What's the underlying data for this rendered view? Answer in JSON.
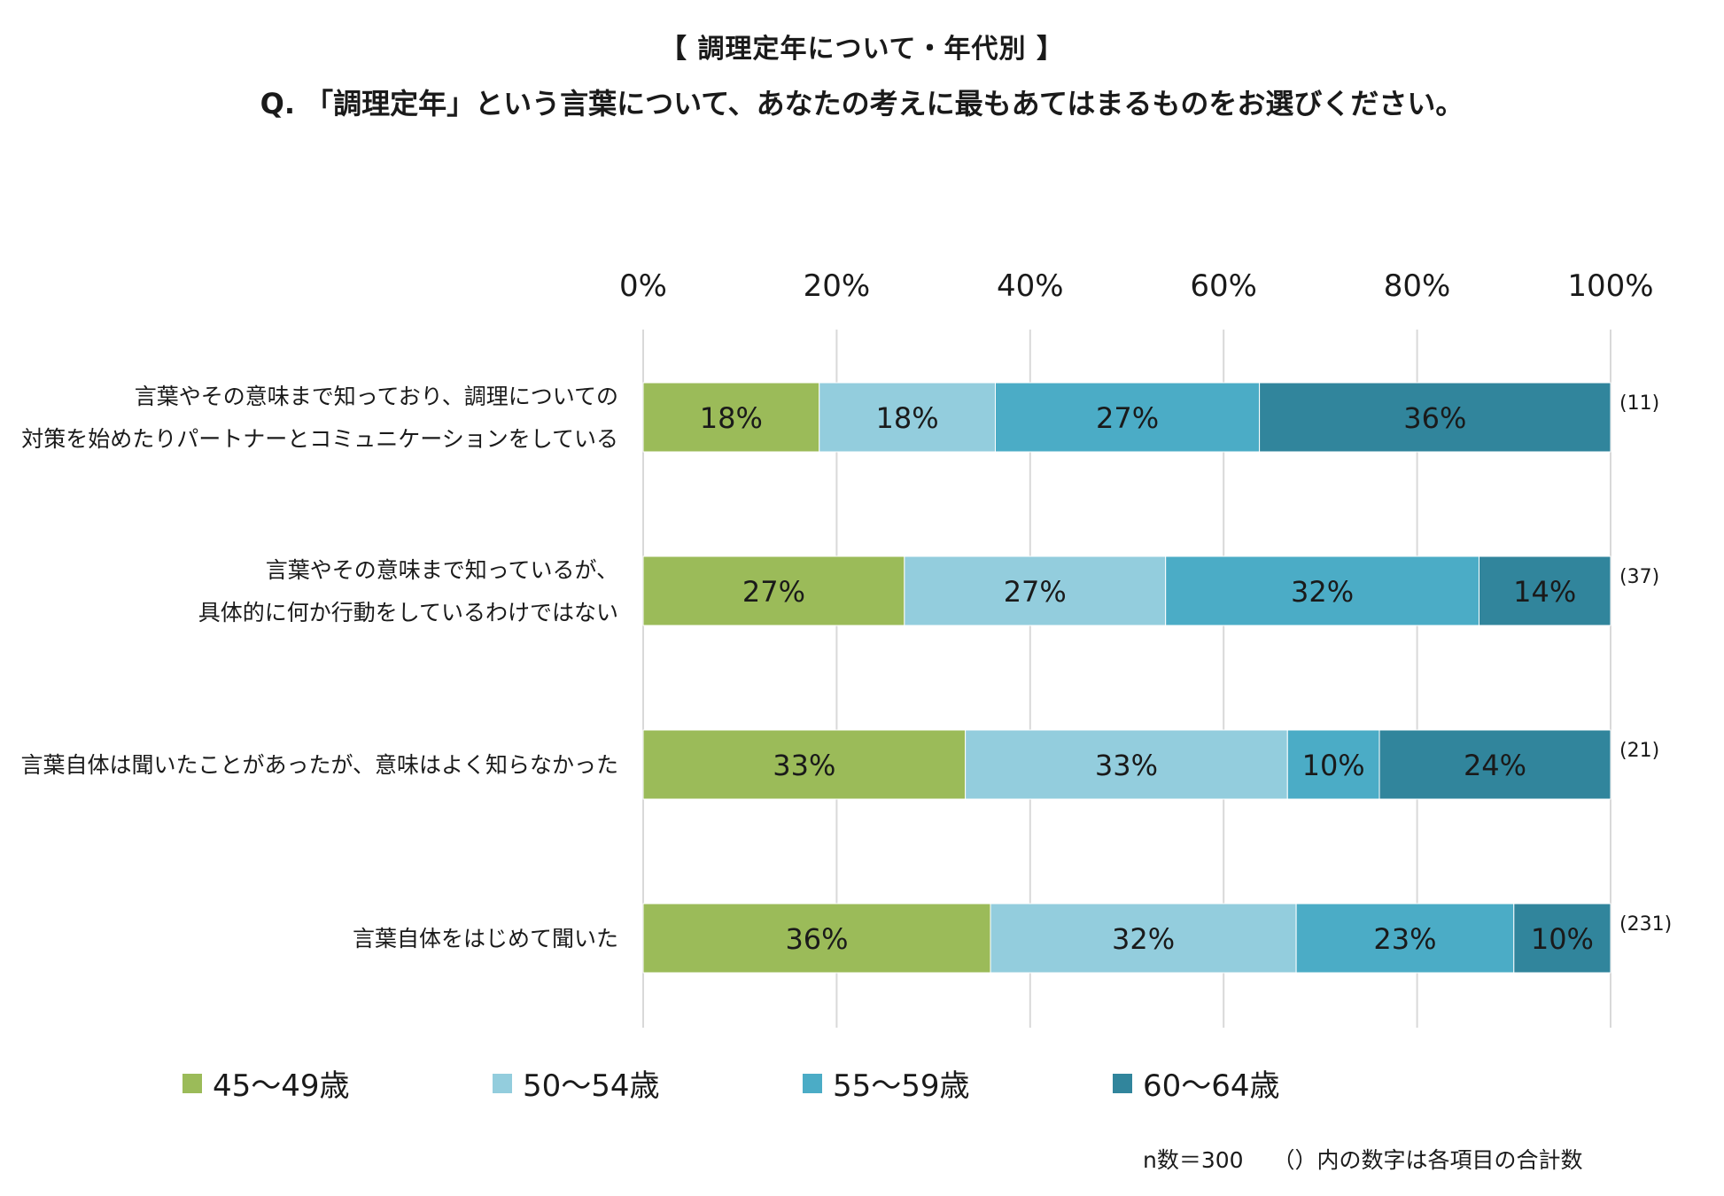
{
  "title": "【 調理定年について・年代別 】",
  "question": "Q. 「調理定年」という言葉について、あなたの考えに最もあてはまるものをお選びください。",
  "colors": {
    "s45": "#9bbb59",
    "s50": "#93cddd",
    "s55": "#4bacc6",
    "s60": "#31859c",
    "grid": "#d9d9d9"
  },
  "chart_data": {
    "type": "bar",
    "orientation": "horizontal",
    "stacked": true,
    "xlim": [
      0,
      100
    ],
    "ticks": [
      "0%",
      "20%",
      "40%",
      "60%",
      "80%",
      "100%"
    ],
    "tick_values": [
      0,
      20,
      40,
      60,
      80,
      100
    ],
    "grid": true,
    "legend_position": "bottom",
    "categories": [
      [
        "言葉やその意味まで知っており、調理についての",
        "対策を始めたりパートナーとコミュニケーションをしている"
      ],
      [
        "言葉やその意味まで知っているが、",
        "具体的に何か行動をしているわけではない"
      ],
      [
        "言葉自体は聞いたことがあったが、意味はよく知らなかった"
      ],
      [
        "言葉自体をはじめて聞いた"
      ]
    ],
    "counts": [
      "(11)",
      "(37)",
      "(21)",
      "(231)"
    ],
    "series": [
      {
        "name": "45～49歳",
        "color_key": "s45",
        "values": [
          18.2,
          27.0,
          33.3,
          35.9
        ],
        "labels": [
          "18%",
          "27%",
          "33%",
          "36%"
        ]
      },
      {
        "name": "50～54歳",
        "color_key": "s50",
        "values": [
          18.2,
          27.0,
          33.3,
          31.6
        ],
        "labels": [
          "18%",
          "27%",
          "33%",
          "32%"
        ]
      },
      {
        "name": "55～59歳",
        "color_key": "s55",
        "values": [
          27.3,
          32.4,
          9.5,
          22.5
        ],
        "labels": [
          "27%",
          "32%",
          "10%",
          "23%"
        ]
      },
      {
        "name": "60～64歳",
        "color_key": "s60",
        "values": [
          36.3,
          13.6,
          23.9,
          10.0
        ],
        "labels": [
          "36%",
          "14%",
          "24%",
          "10%"
        ]
      }
    ]
  },
  "footnote": "n数＝300　 （）内の数字は各項目の合計数"
}
